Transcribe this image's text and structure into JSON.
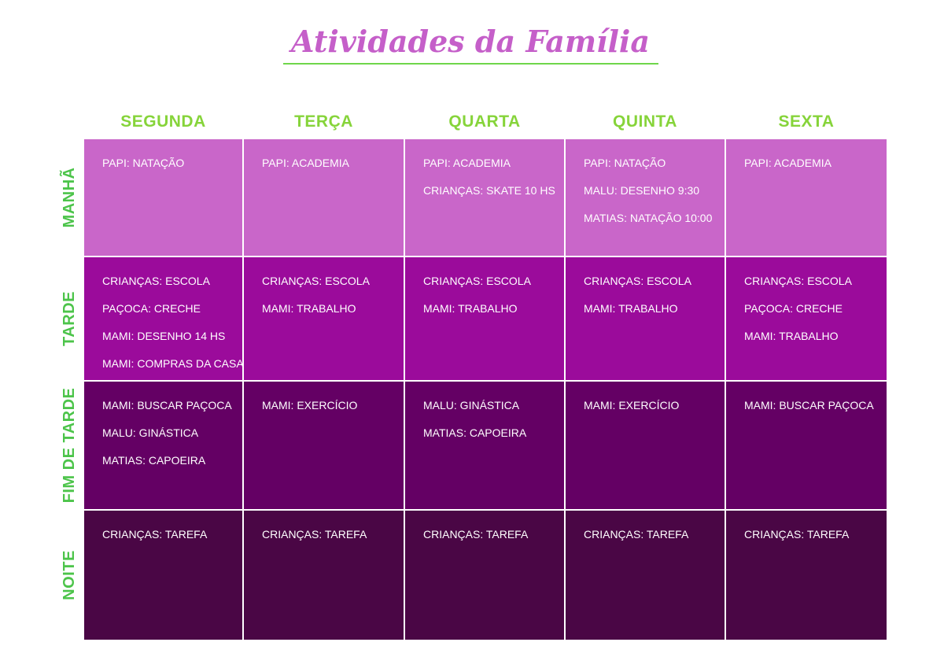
{
  "header": {
    "title": "Atividades da Família"
  },
  "table": {
    "days": [
      "SEGUNDA",
      "TERÇA",
      "QUARTA",
      "QUINTA",
      "SEXTA"
    ],
    "rows": [
      {
        "label": "MANHÃ",
        "cells": [
          [
            "PAPI: NATAÇÃO"
          ],
          [
            "PAPI: ACADEMIA"
          ],
          [
            "PAPI: ACADEMIA",
            "CRIANÇAS: SKATE 10 HS"
          ],
          [
            "PAPI: NATAÇÃO",
            "MALU: DESENHO 9:30",
            "MATIAS: NATAÇÃO 10:00"
          ],
          [
            "PAPI: ACADEMIA"
          ]
        ]
      },
      {
        "label": "TARDE",
        "cells": [
          [
            "CRIANÇAS: ESCOLA",
            "PAÇOCA: CRECHE",
            "MAMI: DESENHO 14 HS",
            "MAMI: COMPRAS DA CASA"
          ],
          [
            "CRIANÇAS: ESCOLA",
            "MAMI: TRABALHO"
          ],
          [
            "CRIANÇAS: ESCOLA",
            "MAMI: TRABALHO"
          ],
          [
            "CRIANÇAS: ESCOLA",
            "MAMI: TRABALHO"
          ],
          [
            "CRIANÇAS: ESCOLA",
            "PAÇOCA: CRECHE",
            "MAMI: TRABALHO"
          ]
        ]
      },
      {
        "label": "FIM DE TARDE",
        "cells": [
          [
            "MAMI: BUSCAR PAÇOCA",
            "MALU: GINÁSTICA",
            "MATIAS: CAPOEIRA"
          ],
          [
            "MAMI: EXERCÍCIO"
          ],
          [
            "MALU: GINÁSTICA",
            "MATIAS: CAPOEIRA"
          ],
          [
            "MAMI: EXERCÍCIO"
          ],
          [
            "MAMI: BUSCAR PAÇOCA"
          ]
        ]
      },
      {
        "label": "NOITE",
        "cells": [
          [
            "CRIANÇAS: TAREFA"
          ],
          [
            "CRIANÇAS: TAREFA"
          ],
          [
            "CRIANÇAS: TAREFA"
          ],
          [
            "CRIANÇAS: TAREFA"
          ],
          [
            "CRIANÇAS: TAREFA"
          ]
        ]
      }
    ]
  }
}
